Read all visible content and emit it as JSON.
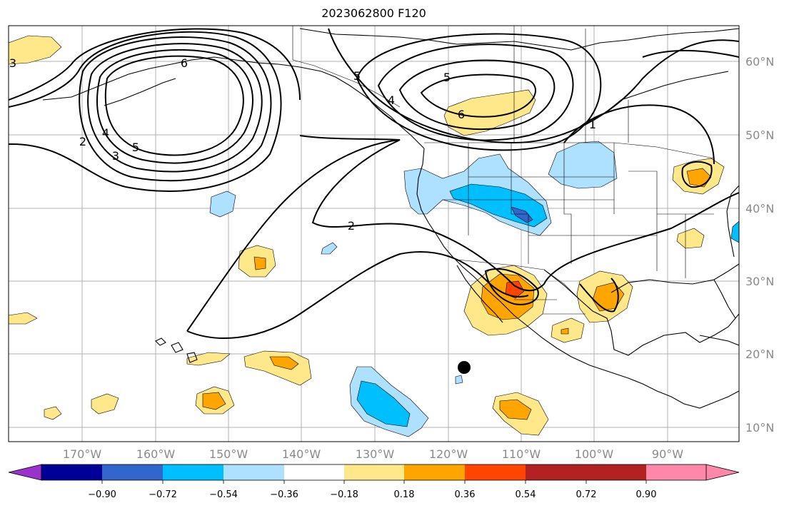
{
  "title": "2023062800 F120",
  "latitude_labels": [
    "60°N",
    "50°N",
    "40°N",
    "30°N",
    "20°N",
    "10°N"
  ],
  "longitude_labels": [
    "170°W",
    "160°W",
    "150°W",
    "140°W",
    "130°W",
    "120°W",
    "110°W",
    "100°W",
    "90°W"
  ],
  "colorbar": {
    "colors": [
      "#9933cc",
      "#000099",
      "#3366cc",
      "#00bfff",
      "#aee0ff",
      "#ffffff",
      "#ffe88a",
      "#ffa500",
      "#ff4500",
      "#b22222",
      "#ff88aa"
    ],
    "tick_labels": [
      "−0.90",
      "−0.72",
      "−0.54",
      "−0.36",
      "−0.18",
      "0.18",
      "0.36",
      "0.54",
      "0.72",
      "0.90"
    ]
  },
  "contour_labels": [
    "6",
    "5",
    "4",
    "3",
    "2",
    "2",
    "5",
    "6",
    "5",
    "4",
    "3",
    "1"
  ],
  "fill_colors": {
    "pos1": "#ffe88a",
    "pos2": "#ffa500",
    "pos3": "#ff4500",
    "neg1": "#aee0ff",
    "neg2": "#00bfff",
    "neg3": "#3366cc"
  }
}
